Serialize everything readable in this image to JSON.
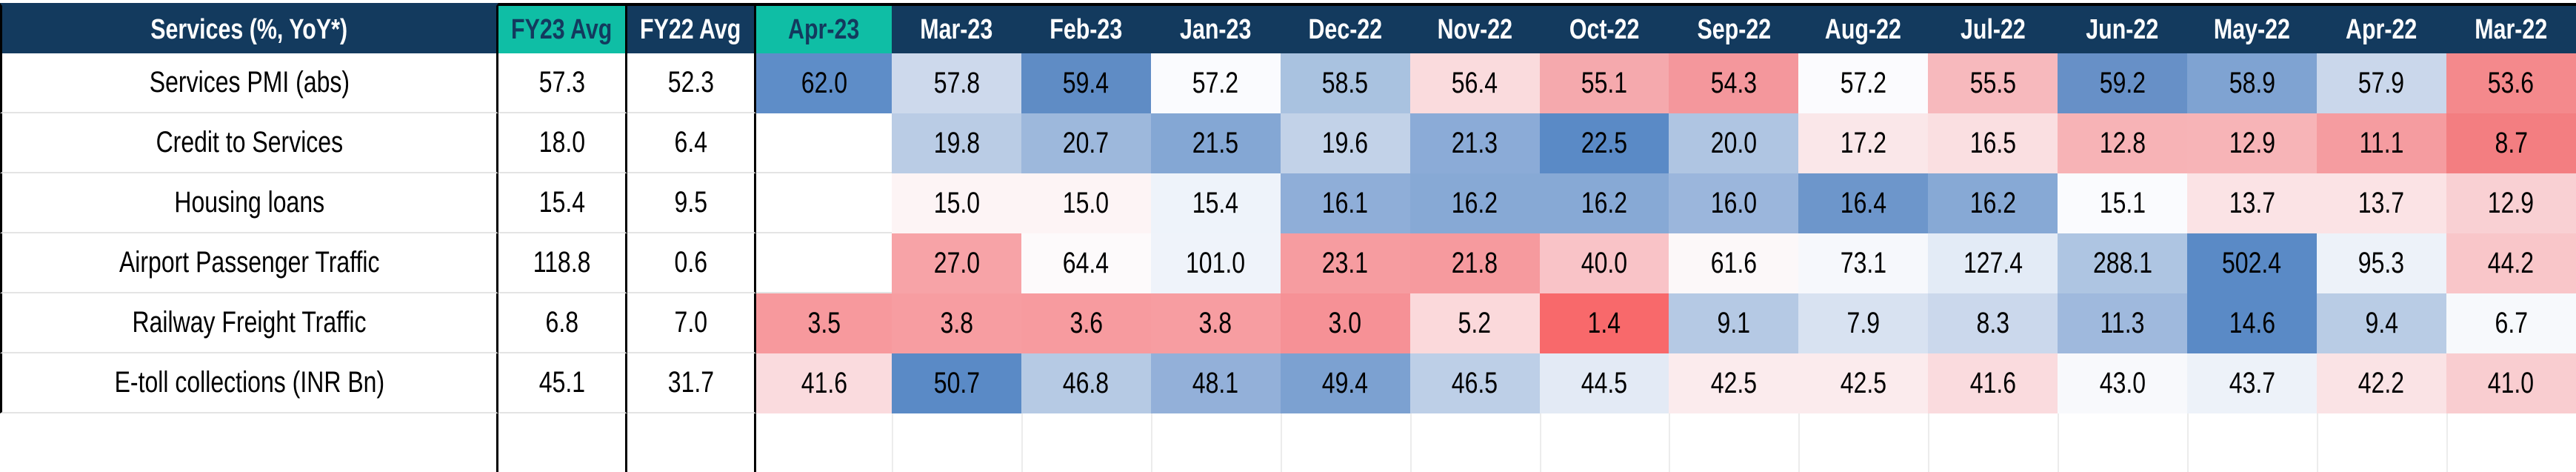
{
  "title": "Services (%, YoY*)",
  "colors": {
    "navy": "#133A5E",
    "teal": "#0FBEA5",
    "border_black": "#000000",
    "gridline": "#E4E4E4",
    "empty_row_separator": "#ECECEC",
    "cell_text": "#000000",
    "scale_min_red": "#F8696B",
    "scale_mid_white": "#FCFCFF",
    "scale_max_blue": "#5A8AC6"
  },
  "header": {
    "label": "Services (%, YoY*)",
    "columns": [
      {
        "label": "FY23 Avg",
        "variant": "teal"
      },
      {
        "label": "FY22 Avg",
        "variant": "navy"
      },
      {
        "label": "Apr-23",
        "variant": "teal"
      },
      {
        "label": "Mar-23",
        "variant": "navy"
      },
      {
        "label": "Feb-23",
        "variant": "navy"
      },
      {
        "label": "Jan-23",
        "variant": "navy"
      },
      {
        "label": "Dec-22",
        "variant": "navy"
      },
      {
        "label": "Nov-22",
        "variant": "navy"
      },
      {
        "label": "Oct-22",
        "variant": "navy"
      },
      {
        "label": "Sep-22",
        "variant": "navy"
      },
      {
        "label": "Aug-22",
        "variant": "navy"
      },
      {
        "label": "Jul-22",
        "variant": "navy"
      },
      {
        "label": "Jun-22",
        "variant": "navy"
      },
      {
        "label": "May-22",
        "variant": "navy"
      },
      {
        "label": "Apr-22",
        "variant": "navy"
      },
      {
        "label": "Mar-22",
        "variant": "navy"
      }
    ]
  },
  "rows": [
    {
      "label": "Services PMI (abs)",
      "fy23": "57.3",
      "fy22": "52.3",
      "months": [
        {
          "v": "62.0",
          "bg": "#5E8DC8"
        },
        {
          "v": "57.8",
          "bg": "#CDD9EC"
        },
        {
          "v": "59.4",
          "bg": "#5F8CC5"
        },
        {
          "v": "57.2",
          "bg": "#FAFBFE"
        },
        {
          "v": "58.5",
          "bg": "#A9C2E0"
        },
        {
          "v": "56.4",
          "bg": "#FADBDD"
        },
        {
          "v": "55.1",
          "bg": "#F5A9AD"
        },
        {
          "v": "54.3",
          "bg": "#F4979C"
        },
        {
          "v": "57.2",
          "bg": "#FBFBFE"
        },
        {
          "v": "55.5",
          "bg": "#F7B9BD"
        },
        {
          "v": "59.2",
          "bg": "#6790C7"
        },
        {
          "v": "58.9",
          "bg": "#7FA3D2"
        },
        {
          "v": "57.9",
          "bg": "#CAD7EB"
        },
        {
          "v": "53.6",
          "bg": "#F4898C"
        }
      ]
    },
    {
      "label": "Credit to Services",
      "fy23": "18.0",
      "fy22": "6.4",
      "months": [
        {
          "v": "",
          "bg": ""
        },
        {
          "v": "19.8",
          "bg": "#BACCE5"
        },
        {
          "v": "20.7",
          "bg": "#9DB8DC"
        },
        {
          "v": "21.5",
          "bg": "#84A7D4"
        },
        {
          "v": "19.6",
          "bg": "#C2D2E8"
        },
        {
          "v": "21.3",
          "bg": "#8BABD7"
        },
        {
          "v": "22.5",
          "bg": "#5A8AC6"
        },
        {
          "v": "20.0",
          "bg": "#AFC5E2"
        },
        {
          "v": "17.2",
          "bg": "#FAE7E9"
        },
        {
          "v": "16.5",
          "bg": "#FADFE1"
        },
        {
          "v": "12.8",
          "bg": "#F7B3B6"
        },
        {
          "v": "12.9",
          "bg": "#F7B4B7"
        },
        {
          "v": "11.1",
          "bg": "#F59CA0"
        },
        {
          "v": "8.7",
          "bg": "#F37E81"
        }
      ]
    },
    {
      "label": "Housing loans",
      "fy23": "15.4",
      "fy22": "9.5",
      "months": [
        {
          "v": "",
          "bg": ""
        },
        {
          "v": "15.0",
          "bg": "#FDF4F5"
        },
        {
          "v": "15.0",
          "bg": "#FDF4F5"
        },
        {
          "v": "15.4",
          "bg": "#EEF3FA"
        },
        {
          "v": "16.1",
          "bg": "#8FAED8"
        },
        {
          "v": "16.2",
          "bg": "#87A9D5"
        },
        {
          "v": "16.2",
          "bg": "#87A9D5"
        },
        {
          "v": "16.0",
          "bg": "#9BB6DC"
        },
        {
          "v": "16.4",
          "bg": "#6D96CB"
        },
        {
          "v": "16.2",
          "bg": "#87A9D5"
        },
        {
          "v": "15.1",
          "bg": "#FAFBFE"
        },
        {
          "v": "13.7",
          "bg": "#FBE3E5"
        },
        {
          "v": "13.7",
          "bg": "#FBE3E5"
        },
        {
          "v": "12.9",
          "bg": "#F9D0D3"
        }
      ]
    },
    {
      "label": "Airport Passenger Traffic",
      "fy23": "118.8",
      "fy22": "0.6",
      "months": [
        {
          "v": "",
          "bg": ""
        },
        {
          "v": "27.0",
          "bg": "#F7A3A7"
        },
        {
          "v": "64.4",
          "bg": "#FDFAFB"
        },
        {
          "v": "101.0",
          "bg": "#EFF3FA"
        },
        {
          "v": "23.1",
          "bg": "#F69CA0"
        },
        {
          "v": "21.8",
          "bg": "#F69A9E"
        },
        {
          "v": "40.0",
          "bg": "#F9C3C7"
        },
        {
          "v": "61.6",
          "bg": "#FCF8F9"
        },
        {
          "v": "73.1",
          "bg": "#F6F8FC"
        },
        {
          "v": "127.4",
          "bg": "#E3EBF6"
        },
        {
          "v": "288.1",
          "bg": "#AEC5E2"
        },
        {
          "v": "502.4",
          "bg": "#5A8AC6"
        },
        {
          "v": "95.3",
          "bg": "#EDF2F9"
        },
        {
          "v": "44.2",
          "bg": "#F9C6C9"
        }
      ]
    },
    {
      "label": "Railway Freight Traffic",
      "fy23": "6.8",
      "fy22": "7.0",
      "months": [
        {
          "v": "3.5",
          "bg": "#F7999D"
        },
        {
          "v": "3.8",
          "bg": "#F79DA1"
        },
        {
          "v": "3.6",
          "bg": "#F79B9F"
        },
        {
          "v": "3.8",
          "bg": "#F79DA1"
        },
        {
          "v": "3.0",
          "bg": "#F69196"
        },
        {
          "v": "5.2",
          "bg": "#FBD9DB"
        },
        {
          "v": "1.4",
          "bg": "#F8696B"
        },
        {
          "v": "9.1",
          "bg": "#B5C9E4"
        },
        {
          "v": "7.9",
          "bg": "#D8E2F1"
        },
        {
          "v": "8.3",
          "bg": "#CBD8EC"
        },
        {
          "v": "11.3",
          "bg": "#9FB9DD"
        },
        {
          "v": "14.6",
          "bg": "#5A8AC6"
        },
        {
          "v": "9.4",
          "bg": "#B9CCE5"
        },
        {
          "v": "6.7",
          "bg": "#F7F9FC"
        }
      ]
    },
    {
      "label": "E-toll collections (INR Bn)",
      "fy23": "45.1",
      "fy22": "31.7",
      "months": [
        {
          "v": "41.6",
          "bg": "#FADBDE"
        },
        {
          "v": "50.7",
          "bg": "#5A8AC6"
        },
        {
          "v": "46.8",
          "bg": "#B6CAE4"
        },
        {
          "v": "48.1",
          "bg": "#93B0D9"
        },
        {
          "v": "49.4",
          "bg": "#7CA1D1"
        },
        {
          "v": "46.5",
          "bg": "#BDCFE7"
        },
        {
          "v": "44.5",
          "bg": "#E3EAF5"
        },
        {
          "v": "42.5",
          "bg": "#FBEBED"
        },
        {
          "v": "42.5",
          "bg": "#FBEBED"
        },
        {
          "v": "41.6",
          "bg": "#FADBDE"
        },
        {
          "v": "43.0",
          "bg": "#F8F9FC"
        },
        {
          "v": "43.7",
          "bg": "#EDF2F9"
        },
        {
          "v": "42.2",
          "bg": "#FAE3E5"
        },
        {
          "v": "41.0",
          "bg": "#F9CDD0"
        }
      ]
    }
  ],
  "empty_row": {
    "months": [
      {
        "v": "",
        "bg": ""
      },
      {
        "v": "",
        "bg": ""
      },
      {
        "v": "",
        "bg": ""
      },
      {
        "v": "",
        "bg": ""
      },
      {
        "v": "",
        "bg": ""
      },
      {
        "v": "",
        "bg": ""
      },
      {
        "v": "",
        "bg": ""
      },
      {
        "v": "",
        "bg": ""
      },
      {
        "v": "",
        "bg": ""
      },
      {
        "v": "",
        "bg": ""
      },
      {
        "v": "",
        "bg": ""
      },
      {
        "v": "",
        "bg": ""
      },
      {
        "v": "",
        "bg": ""
      },
      {
        "v": "",
        "bg": ""
      }
    ]
  },
  "chart_data": {
    "type": "heatmap",
    "title": "Services (%, YoY*)",
    "columns": [
      "FY23 Avg",
      "FY22 Avg",
      "Apr-23",
      "Mar-23",
      "Feb-23",
      "Jan-23",
      "Dec-22",
      "Nov-22",
      "Oct-22",
      "Sep-22",
      "Aug-22",
      "Jul-22",
      "Jun-22",
      "May-22",
      "Apr-22",
      "Mar-22"
    ],
    "row_labels": [
      "Services PMI (abs)",
      "Credit to Services",
      "Housing loans",
      "Airport Passenger Traffic",
      "Railway Freight Traffic",
      "E-toll collections (INR Bn)"
    ],
    "values": [
      [
        57.3,
        52.3,
        62.0,
        57.8,
        59.4,
        57.2,
        58.5,
        56.4,
        55.1,
        54.3,
        57.2,
        55.5,
        59.2,
        58.9,
        57.9,
        53.6
      ],
      [
        18.0,
        6.4,
        null,
        19.8,
        20.7,
        21.5,
        19.6,
        21.3,
        22.5,
        20.0,
        17.2,
        16.5,
        12.8,
        12.9,
        11.1,
        8.7
      ],
      [
        15.4,
        9.5,
        null,
        15.0,
        15.0,
        15.4,
        16.1,
        16.2,
        16.2,
        16.0,
        16.4,
        16.2,
        15.1,
        13.7,
        13.7,
        12.9
      ],
      [
        118.8,
        0.6,
        null,
        27.0,
        64.4,
        101.0,
        23.1,
        21.8,
        40.0,
        61.6,
        73.1,
        127.4,
        288.1,
        502.4,
        95.3,
        44.2
      ],
      [
        6.8,
        7.0,
        3.5,
        3.8,
        3.6,
        3.8,
        3.0,
        5.2,
        1.4,
        9.1,
        7.9,
        8.3,
        11.3,
        14.6,
        9.4,
        6.7
      ],
      [
        45.1,
        31.7,
        41.6,
        50.7,
        46.8,
        48.1,
        49.4,
        46.5,
        44.5,
        42.5,
        42.5,
        41.6,
        43.0,
        43.7,
        42.2,
        41.0
      ]
    ],
    "legend": "per-row 3-color scale: low = red (#F8696B), mid = white (#FCFCFF), high = blue (#5A8AC6); FY avg columns uncolored",
    "grid": "light gray gridlines on uncolored cells; thick black borders around FY23 Avg, FY22 Avg and left edge of Apr-23 column"
  }
}
